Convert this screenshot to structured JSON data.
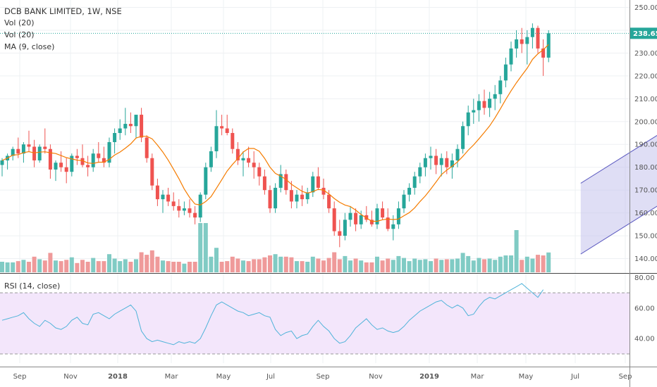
{
  "header": {
    "title": "DCB BANK LIMITED, 1W, NSE",
    "vol1": "Vol (20)",
    "vol2": "Vol (20)",
    "ma": "MA (9, close)"
  },
  "rsi_panel": {
    "label": "RSI (14, close)"
  },
  "last_price_label": "238.65",
  "colors": {
    "up": "#26a69a",
    "down": "#ef5350",
    "up_vol": "#80cbc4",
    "down_vol": "#ef9a9a",
    "ma": "#f57c00",
    "rsi": "#4fb3d9",
    "rsi_band": "#f3e6fb",
    "channel": "#c5c2ec",
    "channel_line": "#5e5cc1"
  },
  "chart_data": [
    {
      "type": "candlestick",
      "title": "DCB BANK LIMITED, 1W, NSE",
      "y_ticks": [
        "140.00",
        "150.00",
        "160.00",
        "170.00",
        "180.00",
        "190.00",
        "200.00",
        "210.00",
        "220.00",
        "230.00",
        "240.00",
        "250.00"
      ],
      "ylim": [
        134,
        252
      ],
      "x_ticks": [
        "Sep",
        "Nov",
        "2018",
        "Mar",
        "May",
        "Jul",
        "Sep",
        "Nov",
        "2019",
        "Mar",
        "May",
        "Jul",
        "Sep"
      ],
      "last_price": 238.65,
      "candles": [
        [
          181,
          184,
          176,
          183
        ],
        [
          183,
          186,
          179,
          185
        ],
        [
          185,
          189,
          183,
          188
        ],
        [
          188,
          193,
          184,
          186
        ],
        [
          186,
          191,
          182,
          190
        ],
        [
          190,
          196,
          187,
          189
        ],
        [
          189,
          192,
          180,
          183
        ],
        [
          183,
          190,
          182,
          189
        ],
        [
          189,
          197,
          186,
          188
        ],
        [
          188,
          190,
          175,
          179
        ],
        [
          179,
          183,
          174,
          182
        ],
        [
          182,
          187,
          178,
          180
        ],
        [
          180,
          184,
          173,
          178
        ],
        [
          178,
          186,
          176,
          185
        ],
        [
          185,
          188,
          181,
          184
        ],
        [
          184,
          190,
          180,
          181
        ],
        [
          181,
          185,
          176,
          180
        ],
        [
          180,
          188,
          178,
          186
        ],
        [
          186,
          191,
          182,
          184
        ],
        [
          184,
          189,
          180,
          182
        ],
        [
          182,
          193,
          180,
          191
        ],
        [
          191,
          197,
          186,
          195
        ],
        [
          195,
          201,
          192,
          197
        ],
        [
          197,
          206,
          194,
          199
        ],
        [
          199,
          204,
          195,
          198
        ],
        [
          198,
          202,
          193,
          203
        ],
        [
          203,
          206,
          191,
          193
        ],
        [
          193,
          194,
          182,
          184
        ],
        [
          184,
          186,
          170,
          172
        ],
        [
          172,
          175,
          163,
          166
        ],
        [
          166,
          170,
          160,
          168
        ],
        [
          168,
          171,
          163,
          165
        ],
        [
          165,
          169,
          161,
          163
        ],
        [
          163,
          166,
          158,
          161
        ],
        [
          161,
          165,
          159,
          162
        ],
        [
          162,
          166,
          158,
          160
        ],
        [
          160,
          163,
          155,
          158
        ],
        [
          158,
          169,
          156,
          168
        ],
        [
          168,
          182,
          166,
          180
        ],
        [
          180,
          189,
          178,
          187
        ],
        [
          187,
          205,
          184,
          198
        ],
        [
          198,
          203,
          194,
          197
        ],
        [
          197,
          203,
          194,
          195
        ],
        [
          195,
          197,
          186,
          188
        ],
        [
          188,
          191,
          181,
          183
        ],
        [
          183,
          187,
          176,
          184
        ],
        [
          184,
          189,
          180,
          182
        ],
        [
          182,
          187,
          175,
          180
        ],
        [
          180,
          182,
          172,
          176
        ],
        [
          176,
          179,
          168,
          170
        ],
        [
          170,
          172,
          160,
          162
        ],
        [
          162,
          173,
          160,
          171
        ],
        [
          171,
          181,
          169,
          177
        ],
        [
          177,
          179,
          168,
          170
        ],
        [
          170,
          174,
          162,
          165
        ],
        [
          165,
          170,
          162,
          168
        ],
        [
          168,
          172,
          163,
          166
        ],
        [
          166,
          171,
          164,
          169
        ],
        [
          169,
          178,
          167,
          176
        ],
        [
          176,
          180,
          170,
          171
        ],
        [
          171,
          175,
          166,
          168
        ],
        [
          168,
          170,
          160,
          162
        ],
        [
          162,
          165,
          150,
          152
        ],
        [
          152,
          157,
          145,
          150
        ],
        [
          150,
          160,
          148,
          157
        ],
        [
          157,
          163,
          154,
          160
        ],
        [
          160,
          162,
          152,
          155
        ],
        [
          155,
          161,
          153,
          159
        ],
        [
          159,
          163,
          156,
          157
        ],
        [
          157,
          161,
          154,
          155
        ],
        [
          155,
          164,
          153,
          162
        ],
        [
          162,
          165,
          157,
          158
        ],
        [
          158,
          162,
          152,
          153
        ],
        [
          153,
          159,
          148,
          155
        ],
        [
          155,
          165,
          153,
          162
        ],
        [
          162,
          170,
          160,
          168
        ],
        [
          168,
          173,
          165,
          171
        ],
        [
          171,
          178,
          168,
          176
        ],
        [
          176,
          182,
          173,
          180
        ],
        [
          180,
          186,
          176,
          184
        ],
        [
          184,
          189,
          179,
          185
        ],
        [
          185,
          188,
          177,
          181
        ],
        [
          181,
          186,
          176,
          184
        ],
        [
          184,
          187,
          177,
          180
        ],
        [
          180,
          186,
          175,
          183
        ],
        [
          183,
          190,
          180,
          188
        ],
        [
          188,
          200,
          186,
          198
        ],
        [
          198,
          207,
          194,
          204
        ],
        [
          204,
          210,
          199,
          205
        ],
        [
          205,
          212,
          200,
          209
        ],
        [
          209,
          214,
          203,
          206
        ],
        [
          206,
          213,
          202,
          210
        ],
        [
          210,
          216,
          205,
          212
        ],
        [
          212,
          220,
          208,
          218
        ],
        [
          218,
          228,
          215,
          225
        ],
        [
          225,
          235,
          222,
          232
        ],
        [
          232,
          240,
          228,
          236
        ],
        [
          236,
          241,
          230,
          234
        ],
        [
          234,
          240,
          225,
          237
        ],
        [
          237,
          243,
          232,
          241
        ],
        [
          241,
          242,
          230,
          232
        ],
        [
          232,
          236,
          220,
          228
        ],
        [
          228,
          240,
          226,
          238.65
        ]
      ],
      "moving_average": {
        "label": "MA (9, close)",
        "period": 9
      },
      "volume": {
        "label": "Vol (20)",
        "scale": "relative"
      },
      "channel": {
        "upper": [
          [
            108,
            173
          ],
          [
            157,
            245
          ]
        ],
        "lower": [
          [
            108,
            142
          ],
          [
            157,
            214
          ]
        ]
      }
    },
    {
      "type": "line",
      "title": "RSI (14, close)",
      "y_ticks": [
        "40.00",
        "60.00",
        "80.00"
      ],
      "ylim": [
        24,
        82
      ],
      "band": [
        30,
        70
      ],
      "values": [
        52,
        53,
        54,
        55,
        57,
        53,
        50,
        48,
        52,
        50,
        47,
        46,
        48,
        52,
        54,
        50,
        49,
        56,
        57,
        55,
        53,
        56,
        58,
        60,
        62,
        58,
        45,
        40,
        38,
        39,
        38,
        37,
        36,
        38,
        37,
        38,
        37,
        40,
        47,
        55,
        62,
        64,
        62,
        60,
        58,
        57,
        55,
        56,
        57,
        55,
        54,
        46,
        42,
        44,
        45,
        40,
        42,
        43,
        48,
        52,
        48,
        45,
        40,
        37,
        38,
        42,
        47,
        50,
        53,
        49,
        46,
        47,
        45,
        44,
        45,
        48,
        52,
        55,
        58,
        60,
        62,
        64,
        65,
        62,
        60,
        62,
        60,
        55,
        56,
        61,
        65,
        67,
        66,
        68,
        70,
        72,
        74,
        76,
        73,
        70,
        67,
        72
      ]
    }
  ]
}
